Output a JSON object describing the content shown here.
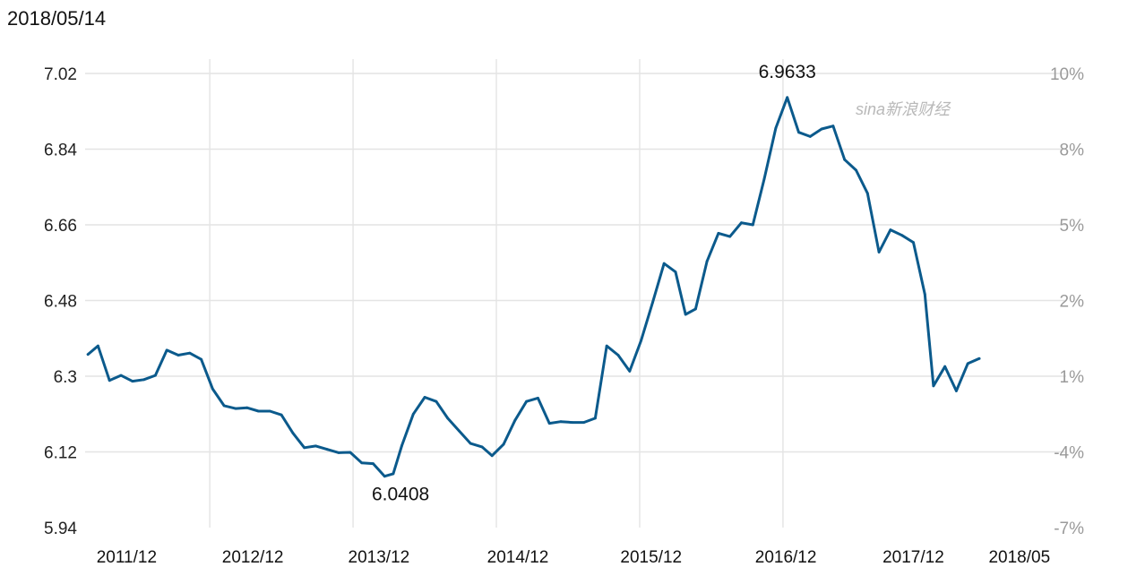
{
  "header": {
    "date": "2018/05/14"
  },
  "watermark": {
    "text": "sina新浪财经"
  },
  "chart_data": {
    "type": "line",
    "title": "",
    "xlabel": "",
    "ylabel": "",
    "ylim": [
      5.94,
      7.02
    ],
    "y_ticks": [
      "7.02",
      "6.84",
      "6.66",
      "6.48",
      "6.3",
      "6.12",
      "5.94"
    ],
    "y2_ticks": [
      "10%",
      "8%",
      "5%",
      "2%",
      "1%",
      "-4%",
      "-7%"
    ],
    "x_ticks": [
      "2011/12",
      "2012/12",
      "2013/12",
      "2014/12",
      "2015/12",
      "2016/12",
      "2017/12",
      "2018/05"
    ],
    "x_range": [
      2011.43,
      2018.37
    ],
    "grid": true,
    "series": [
      {
        "color": "#0b5a8c",
        "points": [
          [
            2011.45,
            6.352
          ],
          [
            2011.52,
            6.372
          ],
          [
            2011.6,
            6.29
          ],
          [
            2011.68,
            6.302
          ],
          [
            2011.76,
            6.288
          ],
          [
            2011.84,
            6.292
          ],
          [
            2011.92,
            6.302
          ],
          [
            2012.0,
            6.362
          ],
          [
            2012.08,
            6.35
          ],
          [
            2012.16,
            6.355
          ],
          [
            2012.24,
            6.34
          ],
          [
            2012.32,
            6.27
          ],
          [
            2012.4,
            6.23
          ],
          [
            2012.48,
            6.223
          ],
          [
            2012.56,
            6.225
          ],
          [
            2012.64,
            6.217
          ],
          [
            2012.72,
            6.217
          ],
          [
            2012.8,
            6.208
          ],
          [
            2012.88,
            6.165
          ],
          [
            2012.96,
            6.13
          ],
          [
            2013.04,
            6.134
          ],
          [
            2013.12,
            6.126
          ],
          [
            2013.2,
            6.118
          ],
          [
            2013.28,
            6.119
          ],
          [
            2013.36,
            6.094
          ],
          [
            2013.44,
            6.092
          ],
          [
            2013.52,
            6.062
          ],
          [
            2013.58,
            6.068
          ],
          [
            2013.64,
            6.135
          ],
          [
            2013.72,
            6.21
          ],
          [
            2013.8,
            6.25
          ],
          [
            2013.88,
            6.24
          ],
          [
            2013.96,
            6.2
          ],
          [
            2014.04,
            6.17
          ],
          [
            2014.12,
            6.14
          ],
          [
            2014.2,
            6.132
          ],
          [
            2014.27,
            6.111
          ],
          [
            2014.35,
            6.138
          ],
          [
            2014.43,
            6.195
          ],
          [
            2014.51,
            6.24
          ],
          [
            2014.59,
            6.248
          ],
          [
            2014.67,
            6.188
          ],
          [
            2014.75,
            6.192
          ],
          [
            2014.83,
            6.19
          ],
          [
            2014.91,
            6.19
          ],
          [
            2014.99,
            6.2
          ],
          [
            2015.07,
            6.372
          ],
          [
            2015.15,
            6.35
          ],
          [
            2015.23,
            6.312
          ],
          [
            2015.31,
            6.385
          ],
          [
            2015.39,
            6.475
          ],
          [
            2015.47,
            6.568
          ],
          [
            2015.55,
            6.548
          ],
          [
            2015.62,
            6.447
          ],
          [
            2015.69,
            6.46
          ],
          [
            2015.77,
            6.573
          ],
          [
            2015.85,
            6.64
          ],
          [
            2015.93,
            6.632
          ],
          [
            2016.01,
            6.665
          ],
          [
            2016.09,
            6.66
          ],
          [
            2016.17,
            6.77
          ],
          [
            2016.25,
            6.89
          ],
          [
            2016.33,
            6.963
          ],
          [
            2016.41,
            6.88
          ],
          [
            2016.49,
            6.87
          ],
          [
            2016.57,
            6.888
          ],
          [
            2016.65,
            6.895
          ],
          [
            2016.73,
            6.815
          ],
          [
            2016.81,
            6.79
          ],
          [
            2016.89,
            6.735
          ],
          [
            2016.97,
            6.595
          ],
          [
            2017.05,
            6.648
          ],
          [
            2017.13,
            6.635
          ],
          [
            2017.21,
            6.618
          ],
          [
            2017.29,
            6.495
          ],
          [
            2017.35,
            6.277
          ],
          [
            2017.43,
            6.323
          ],
          [
            2017.51,
            6.265
          ],
          [
            2017.59,
            6.33
          ],
          [
            2017.67,
            6.342
          ]
        ]
      }
    ],
    "annotations": [
      {
        "text": "6.9633",
        "x": 2016.33,
        "y": 6.963
      },
      {
        "text": "6.0408",
        "x": 2013.55,
        "y": 6.062
      }
    ]
  }
}
